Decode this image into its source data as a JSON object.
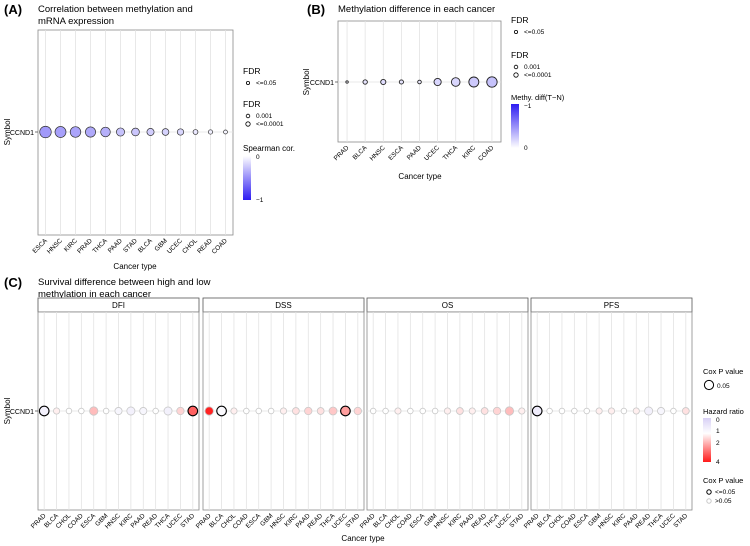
{
  "chart_data": [
    {
      "panel": "(A)",
      "type": "scatter",
      "title": "Correlation between methylation and mRNA expression",
      "title_lines": [
        "Correlation between methylation and",
        "mRNA expression"
      ],
      "xlabel": "Cancer type",
      "ylabel": "Symbol",
      "rows": [
        "CCND1"
      ],
      "categories": [
        "ESCA",
        "HNSC",
        "KIRC",
        "PRAD",
        "THCA",
        "PAAD",
        "STAD",
        "BLCA",
        "GBM",
        "UCEC",
        "CHOL",
        "READ",
        "COAD"
      ],
      "values": [
        -0.45,
        -0.42,
        -0.4,
        -0.38,
        -0.35,
        -0.27,
        -0.25,
        -0.22,
        -0.2,
        -0.18,
        -0.1,
        -0.07,
        -0.05
      ],
      "fdr_legend": {
        "title": "FDR",
        "entries": [
          "<=0.05",
          "0.001",
          "<=0.0001"
        ]
      },
      "color_legend": {
        "title": "Spearman cor.",
        "ticks": [
          "0",
          "−1"
        ],
        "low_color": "#1a1aff",
        "high_color": "#ffffff"
      }
    },
    {
      "panel": "(B)",
      "type": "scatter",
      "title": "Methylation difference in each cancer",
      "xlabel": "Cancer type",
      "ylabel": "Symbol",
      "rows": [
        "CCND1"
      ],
      "categories": [
        "PRAD",
        "BLCA",
        "HNSC",
        "ESCA",
        "PAAD",
        "UCEC",
        "THCA",
        "KIRC",
        "COAD"
      ],
      "values": [
        -0.02,
        -0.04,
        -0.05,
        -0.04,
        -0.03,
        -0.06,
        -0.06,
        -0.08,
        -0.09
      ],
      "fdr_legend": {
        "title": "FDR",
        "entries": [
          "<=0.05",
          "0.001",
          "<=0.0001"
        ]
      },
      "color_legend": {
        "title": "Methy. diff(T−N)",
        "ticks": [
          "−1",
          "0"
        ],
        "low_color": "#1a1aff",
        "high_color": "#ffffff"
      }
    },
    {
      "panel": "(C)",
      "type": "scatter",
      "title": "Survival difference between high and low methylation in each cancer",
      "title_lines": [
        "Survival difference between high and low",
        "methylation in each cancer"
      ],
      "xlabel": "Cancer type",
      "ylabel": "Symbol",
      "rows": [
        "CCND1"
      ],
      "facets": [
        {
          "name": "DFI",
          "categories": [
            "PRAD",
            "BLCA",
            "CHOL",
            "COAD",
            "ESCA",
            "GBM",
            "HNSC",
            "KIRC",
            "PAAD",
            "READ",
            "THCA",
            "UCEC",
            "STAD"
          ],
          "hazard_ratio": [
            0.7,
            1.1,
            1.0,
            1.0,
            1.5,
            1.0,
            0.8,
            0.7,
            0.8,
            1.0,
            0.7,
            1.3,
            2.6
          ],
          "significant": [
            true,
            false,
            false,
            false,
            false,
            false,
            false,
            false,
            false,
            false,
            false,
            false,
            true
          ]
        },
        {
          "name": "DSS",
          "categories": [
            "PRAD",
            "BLCA",
            "CHOL",
            "COAD",
            "ESCA",
            "GBM",
            "HNSC",
            "KIRC",
            "PAAD",
            "READ",
            "THCA",
            "UCEC",
            "STAD"
          ],
          "hazard_ratio": [
            3.8,
            0.9,
            1.1,
            1.0,
            1.0,
            1.0,
            1.1,
            1.2,
            1.3,
            1.2,
            1.4,
            1.8,
            1.3
          ],
          "significant": [
            false,
            true,
            false,
            false,
            false,
            false,
            false,
            false,
            false,
            false,
            false,
            true,
            false
          ]
        },
        {
          "name": "OS",
          "categories": [
            "PRAD",
            "BLCA",
            "CHOL",
            "COAD",
            "ESCA",
            "GBM",
            "HNSC",
            "KIRC",
            "PAAD",
            "READ",
            "THCA",
            "UCEC",
            "STAD"
          ],
          "hazard_ratio": [
            1.0,
            1.0,
            1.1,
            1.0,
            1.0,
            1.0,
            1.1,
            1.2,
            1.1,
            1.2,
            1.3,
            1.5,
            1.1
          ],
          "significant": [
            false,
            false,
            false,
            false,
            false,
            false,
            false,
            false,
            false,
            false,
            false,
            false,
            false
          ]
        },
        {
          "name": "PFS",
          "categories": [
            "PRAD",
            "BLCA",
            "CHOL",
            "COAD",
            "ESCA",
            "GBM",
            "HNSC",
            "KIRC",
            "PAAD",
            "READ",
            "THCA",
            "UCEC",
            "STAD"
          ],
          "hazard_ratio": [
            0.6,
            1.0,
            1.0,
            1.0,
            1.0,
            1.1,
            1.1,
            1.0,
            1.1,
            0.7,
            0.8,
            1.0,
            1.2
          ],
          "significant": [
            true,
            false,
            false,
            false,
            false,
            false,
            false,
            false,
            false,
            false,
            false,
            false,
            false
          ]
        }
      ],
      "size_legend": {
        "title": "Cox P value",
        "entries": [
          "0.05"
        ]
      },
      "color_legend": {
        "title": "Hazard ratio",
        "ticks": [
          "0",
          "1",
          "2",
          "4"
        ],
        "low_color": "#d8d0f5",
        "mid_color": "#ffffff",
        "high_color": "#ff1a1a"
      },
      "sig_legend": {
        "title": "Cox P value",
        "entries": [
          "<=0.05",
          ">0.05"
        ]
      }
    }
  ]
}
